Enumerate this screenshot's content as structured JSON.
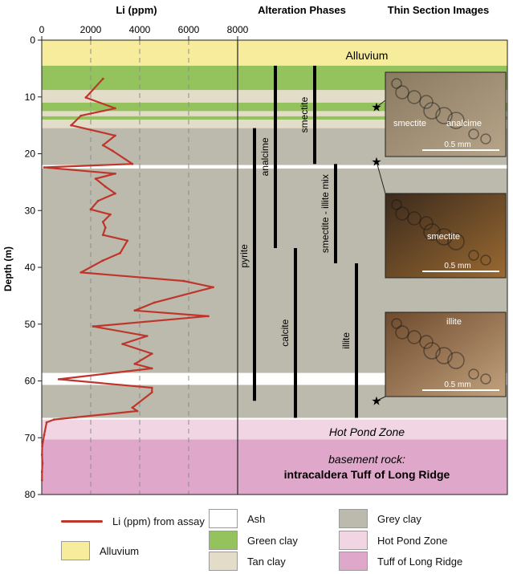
{
  "colors": {
    "alluvium": "#f6ec9c",
    "green_clay": "#94c25d",
    "tan_clay": "#e3dcc8",
    "grey_clay": "#bcbaac",
    "ash": "#ffffff",
    "hot_pond": "#f1d5e2",
    "tuff": "#dfa7c9",
    "li_line": "#c0352b",
    "phase_bar": "#000000"
  },
  "headers": {
    "li": "Li (ppm)",
    "alteration": "Alteration Phases",
    "thin": "Thin Section Images"
  },
  "zone_labels": {
    "alluvium": "Alluvium",
    "hot_pond": "Hot Pond Zone",
    "basement_line1": "basement rock:",
    "basement_line2": "intracaldera Tuff of Long Ridge"
  },
  "chart_data": {
    "type": "line",
    "xlabel": "Li (ppm)",
    "ylabel": "Depth (m)",
    "xlim": [
      0,
      8000
    ],
    "ylim": [
      0,
      80
    ],
    "x_ticks": [
      "0",
      "2000",
      "4000",
      "6000",
      "8000"
    ],
    "y_ticks": [
      "0",
      "10",
      "20",
      "30",
      "40",
      "50",
      "60",
      "70",
      "80"
    ],
    "grid": "dashed vertical at 2000, 4000, 6000",
    "series": [
      {
        "name": "Li (ppm) from assay",
        "points": [
          [
            2500,
            6.8
          ],
          [
            1800,
            10.1
          ],
          [
            3000,
            12.0
          ],
          [
            1600,
            13.3
          ],
          [
            1200,
            15.0
          ],
          [
            3000,
            16.8
          ],
          [
            2500,
            18.5
          ],
          [
            2900,
            19.5
          ],
          [
            3700,
            21.8
          ],
          [
            100,
            22.4
          ],
          [
            3000,
            23.5
          ],
          [
            2200,
            24.4
          ],
          [
            2600,
            25.8
          ],
          [
            3000,
            27.0
          ],
          [
            2300,
            28.3
          ],
          [
            2000,
            29.8
          ],
          [
            2800,
            30.7
          ],
          [
            2500,
            32.0
          ],
          [
            2600,
            33.0
          ],
          [
            2500,
            34.3
          ],
          [
            3500,
            35.3
          ],
          [
            3200,
            37.5
          ],
          [
            2500,
            38.8
          ],
          [
            1600,
            40.9
          ],
          [
            5800,
            42.4
          ],
          [
            7000,
            43.5
          ],
          [
            4600,
            46.2
          ],
          [
            3800,
            47.6
          ],
          [
            6800,
            48.6
          ],
          [
            2100,
            50.4
          ],
          [
            4300,
            52.1
          ],
          [
            3300,
            53.5
          ],
          [
            4500,
            55.2
          ],
          [
            3800,
            57.0
          ],
          [
            4500,
            57.8
          ],
          [
            700,
            59.7
          ],
          [
            4500,
            61.2
          ],
          [
            4500,
            62.0
          ],
          [
            3700,
            64.7
          ],
          [
            3900,
            65.3
          ],
          [
            500,
            66.8
          ],
          [
            200,
            67.3
          ],
          [
            100,
            69.5
          ],
          [
            20,
            71.5
          ],
          [
            10,
            73.0
          ],
          [
            30,
            74.5
          ],
          [
            10,
            76.0
          ],
          [
            10,
            77.5
          ]
        ]
      }
    ],
    "lithology": [
      {
        "unit": "Alluvium",
        "top": 0,
        "bottom": 4.5
      },
      {
        "unit": "Green clay",
        "top": 4.5,
        "bottom": 8.8
      },
      {
        "unit": "Tan clay",
        "top": 8.8,
        "bottom": 11.0
      },
      {
        "unit": "Green clay",
        "top": 11.0,
        "bottom": 12.5
      },
      {
        "unit": "Tan clay",
        "top": 12.5,
        "bottom": 13.4
      },
      {
        "unit": "Green clay",
        "top": 13.4,
        "bottom": 14.0
      },
      {
        "unit": "Tan clay",
        "top": 14.0,
        "bottom": 15.5
      },
      {
        "unit": "Grey clay",
        "top": 15.5,
        "bottom": 22.0
      },
      {
        "unit": "Ash",
        "top": 22.0,
        "bottom": 22.6
      },
      {
        "unit": "Grey clay",
        "top": 22.6,
        "bottom": 58.6
      },
      {
        "unit": "Ash",
        "top": 58.6,
        "bottom": 60.7
      },
      {
        "unit": "Grey clay",
        "top": 60.7,
        "bottom": 66.5
      },
      {
        "unit": "Ash",
        "top": 66.5,
        "bottom": 66.8
      },
      {
        "unit": "Hot Pond Zone",
        "top": 66.8,
        "bottom": 70.3
      },
      {
        "unit": "Tuff of Long Ridge",
        "top": 70.3,
        "bottom": 80
      }
    ],
    "alteration_phases": [
      {
        "name": "analcime",
        "top": 4.5,
        "bottom": 36.6
      },
      {
        "name": "smectite",
        "top": 4.5,
        "bottom": 21.8
      },
      {
        "name": "smectite - illite mix",
        "top": 21.8,
        "bottom": 39.3
      },
      {
        "name": "pyrite",
        "top": 15.5,
        "bottom": 63.5
      },
      {
        "name": "calcite",
        "top": 36.6,
        "bottom": 66.5
      },
      {
        "name": "illite",
        "top": 39.3,
        "bottom": 66.5
      }
    ],
    "thin_sections": [
      {
        "depth": 11.8,
        "labels": [
          "smectite",
          "analcime"
        ],
        "scale": "0.5 mm"
      },
      {
        "depth": 21.4,
        "labels": [
          "smectite"
        ],
        "scale": "0.5 mm"
      },
      {
        "depth": 63.5,
        "labels": [
          "illite"
        ],
        "scale": "0.5 mm"
      }
    ]
  },
  "legend": {
    "li_line": "Li (ppm) from assay",
    "alluvium": "Alluvium",
    "ash": "Ash",
    "green_clay": "Green clay",
    "tan_clay": "Tan clay",
    "grey_clay": "Grey clay",
    "hot_pond": "Hot Pond Zone",
    "tuff": "Tuff of Long Ridge"
  }
}
